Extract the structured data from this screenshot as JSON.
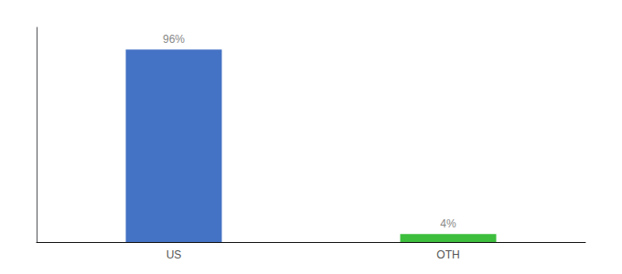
{
  "chart_data": {
    "type": "bar",
    "categories": [
      "US",
      "OTH"
    ],
    "values": [
      96,
      4
    ],
    "value_labels": [
      "96%",
      "4%"
    ],
    "colors": [
      "#4472C4",
      "#3DBE3D"
    ],
    "ylim": [
      0,
      107
    ],
    "data_labels": true,
    "tick_labels": "x",
    "grid": false
  }
}
